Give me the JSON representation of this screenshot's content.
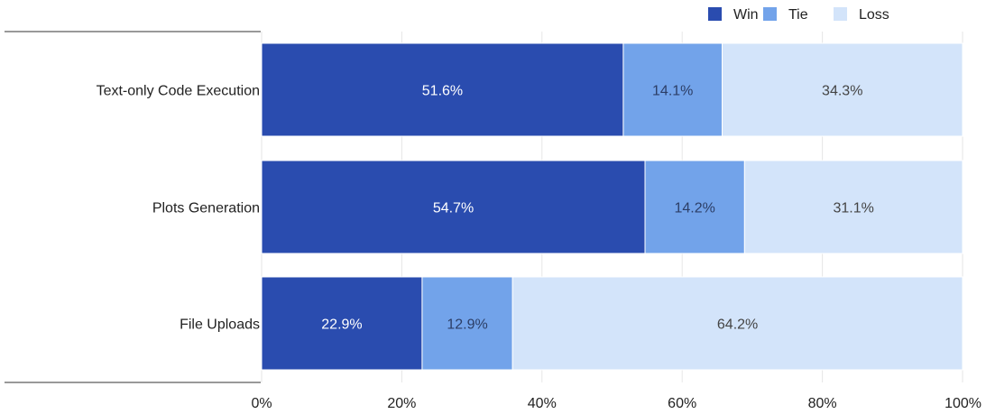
{
  "chart_data": {
    "type": "bar",
    "orientation": "horizontal",
    "stacked": true,
    "title": "",
    "xlabel": "",
    "ylabel": "",
    "categories": [
      "Text-only Code Execution",
      "Plots Generation",
      "File Uploads"
    ],
    "series": [
      {
        "name": "Win",
        "values": [
          51.6,
          54.7,
          22.9
        ],
        "labels": [
          "51.6%",
          "54.7%",
          "22.9%"
        ],
        "color": "#2a4caf",
        "text_color": "#ffffff"
      },
      {
        "name": "Tie",
        "values": [
          14.1,
          14.2,
          12.9
        ],
        "labels": [
          "14.1%",
          "14.2%",
          "12.9%"
        ],
        "color": "#72a3ea",
        "text_color": "#2c3e66"
      },
      {
        "name": "Loss",
        "values": [
          34.3,
          31.1,
          64.2
        ],
        "labels": [
          "34.3%",
          "31.1%",
          "64.2%"
        ],
        "color": "#d3e4fa",
        "text_color": "#444444"
      }
    ],
    "xlim": [
      0,
      100
    ],
    "xticks": [
      0,
      20,
      40,
      60,
      80,
      100
    ],
    "xtick_labels": [
      "0%",
      "20%",
      "40%",
      "60%",
      "80%",
      "100%"
    ],
    "grid": true,
    "legend_position": "top-right"
  }
}
